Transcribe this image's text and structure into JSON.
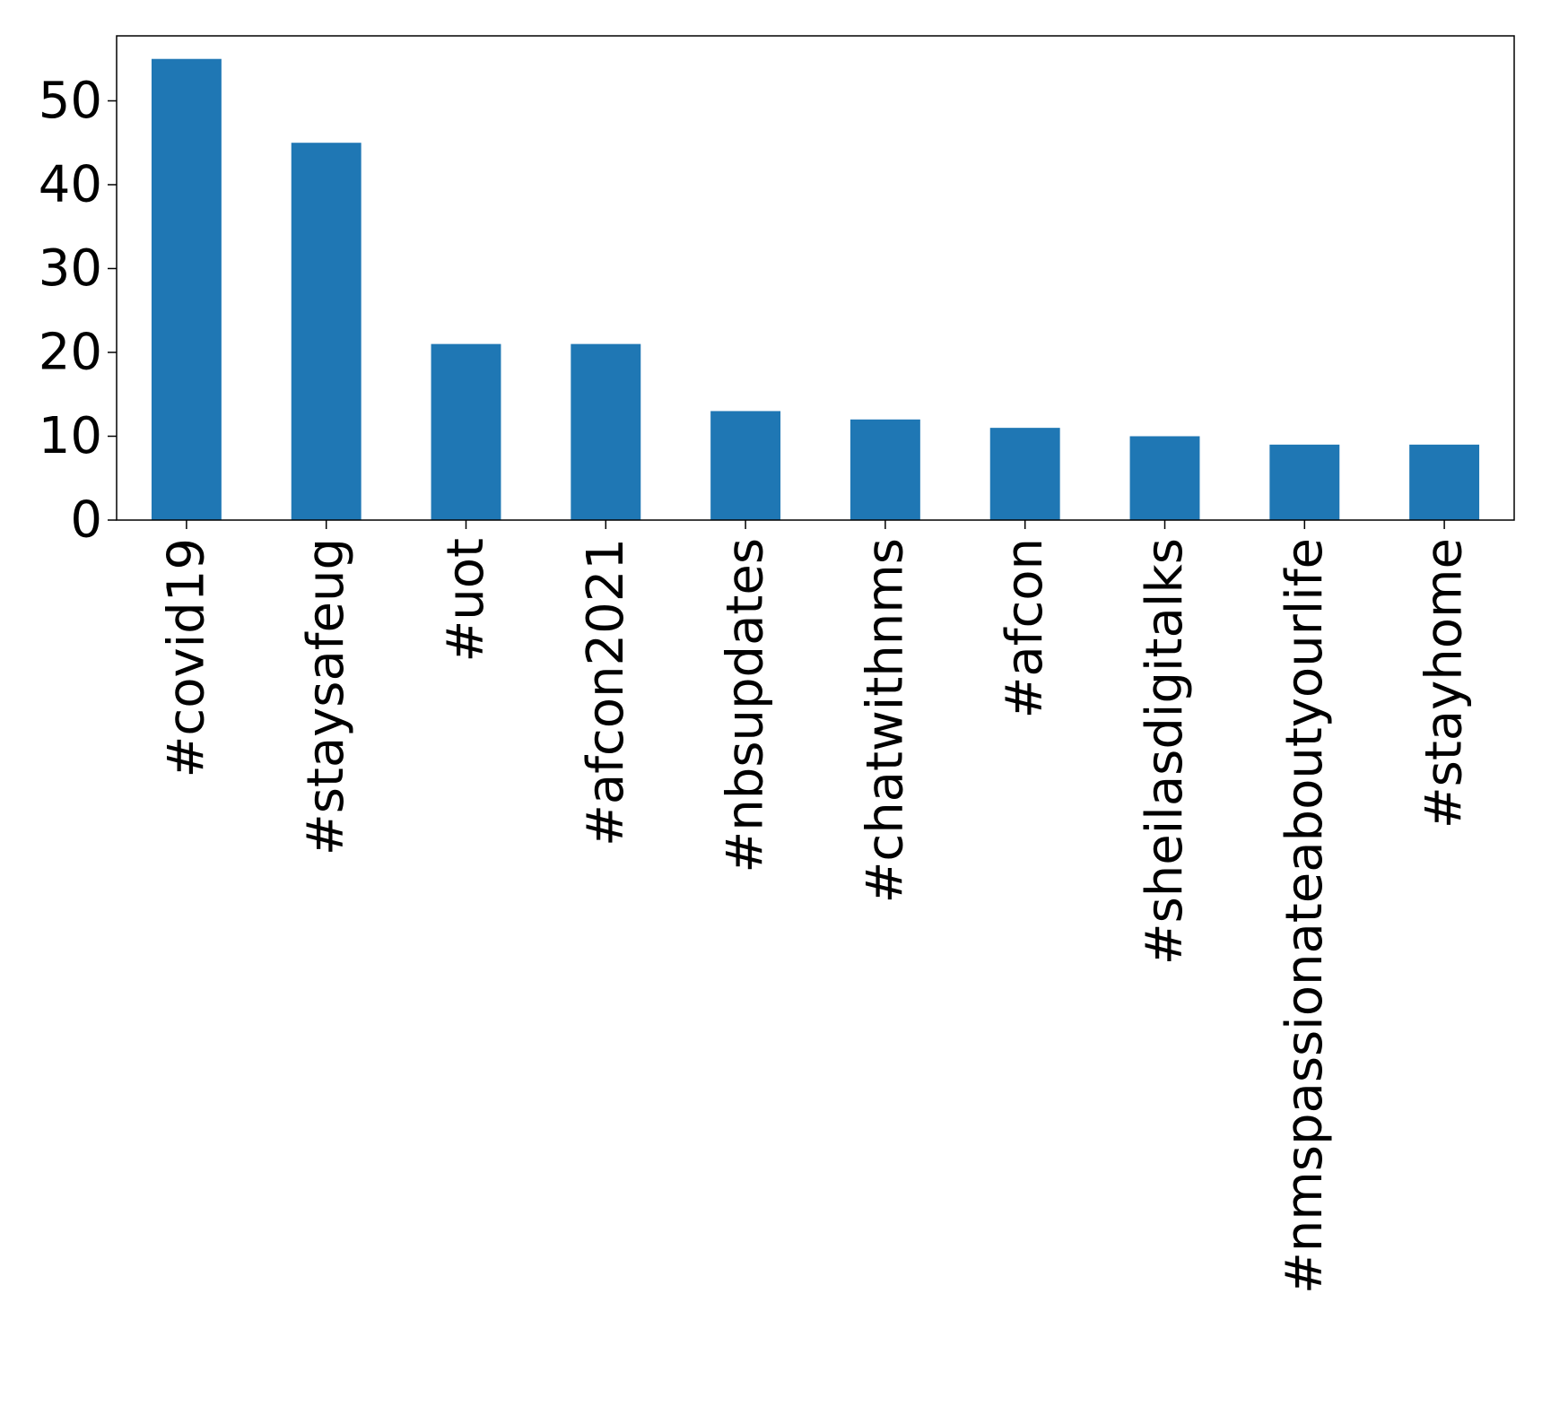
{
  "chart_data": {
    "type": "bar",
    "categories": [
      "#covid19",
      "#staysafeug",
      "#uot",
      "#afcon2021",
      "#nbsupdates",
      "#chatwithnms",
      "#afcon",
      "#sheilasdigitalks",
      "#nmspassionateaboutyourlife",
      "#stayhome"
    ],
    "values": [
      55,
      45,
      21,
      21,
      13,
      12,
      11,
      10,
      9,
      9
    ],
    "title": "",
    "xlabel": "",
    "ylabel": "",
    "ylim": [
      0,
      57.75
    ],
    "yticks": [
      0,
      10,
      20,
      30,
      40,
      50
    ],
    "bar_color": "#1f77b4",
    "grid": false,
    "legend": "none"
  }
}
